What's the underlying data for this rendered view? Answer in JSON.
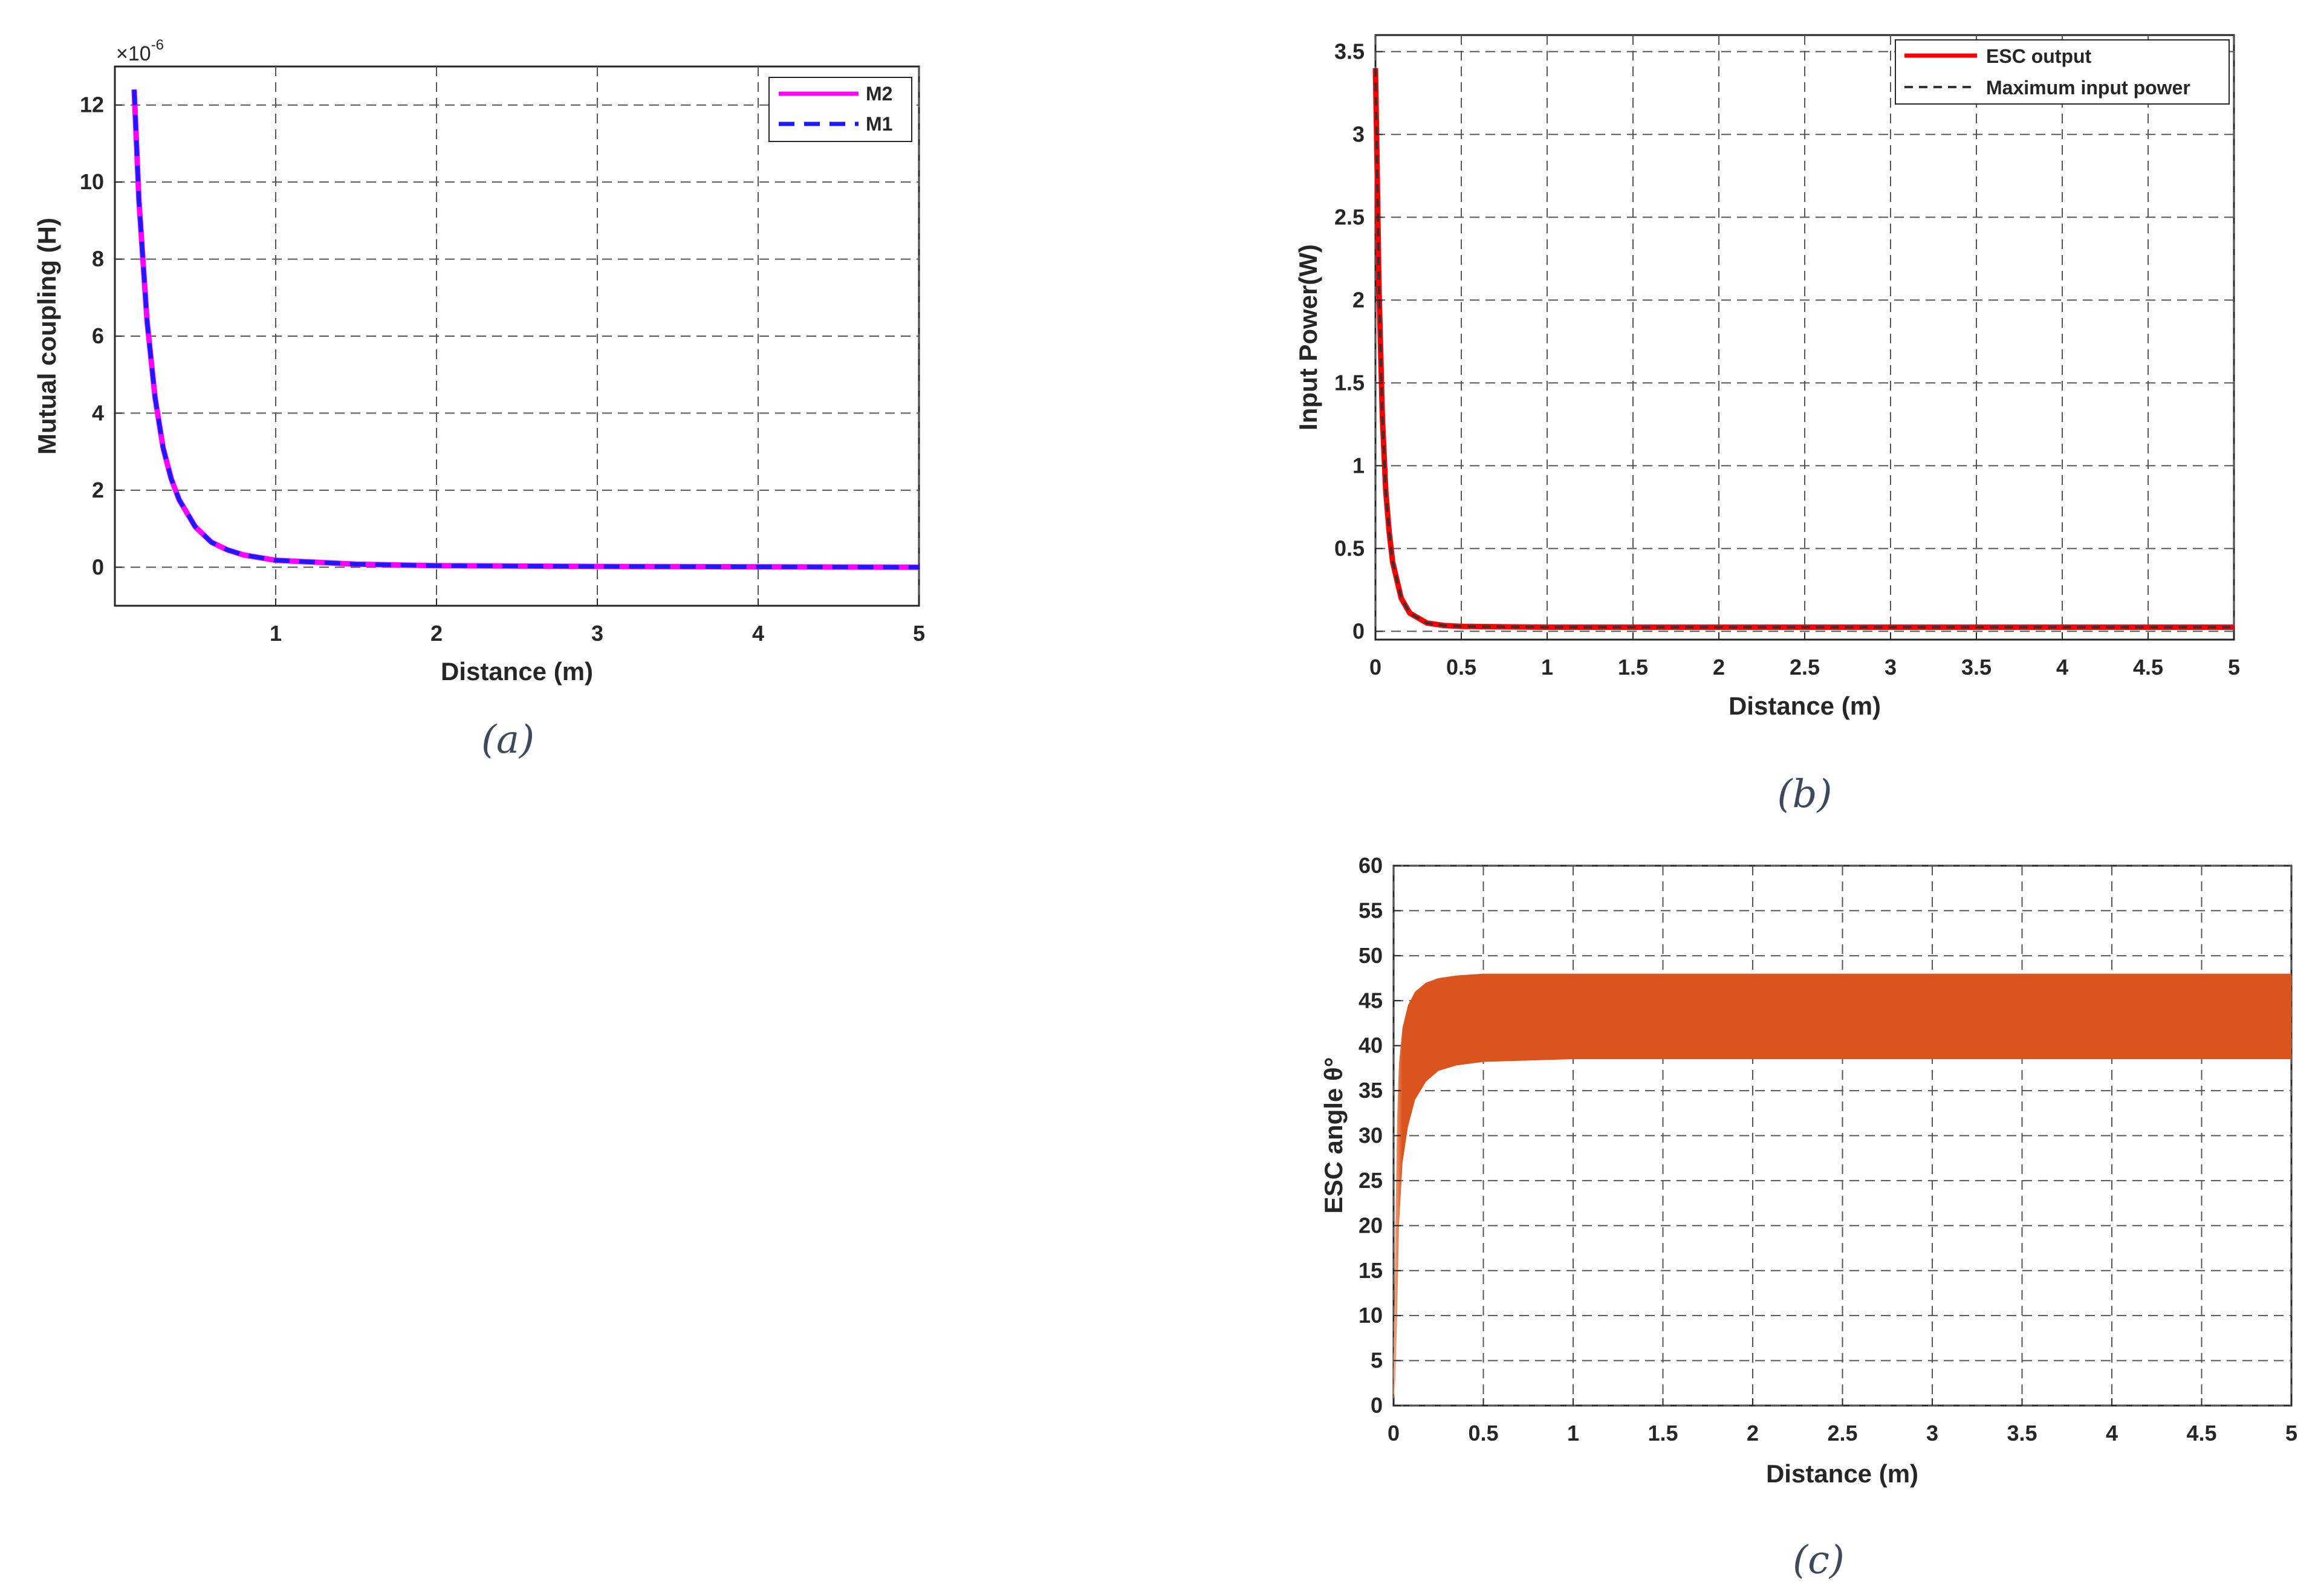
{
  "chart_data": [
    {
      "id": "a",
      "type": "line",
      "caption": "(a)",
      "xlabel": "Distance (m)",
      "ylabel": "Mutual coupling (H)",
      "exponent": "×10",
      "exponent_power": "-6",
      "xlim": [
        0,
        5
      ],
      "ylim": [
        -1,
        13
      ],
      "xticks": [
        "1",
        "2",
        "3",
        "4",
        "5"
      ],
      "yticks": [
        "0",
        "2",
        "4",
        "6",
        "8",
        "10",
        "12"
      ],
      "grid": true,
      "legend_position": "top-right",
      "colors": {
        "M2": "#ff00ff",
        "M1": "#1a1aff"
      },
      "series": [
        {
          "name": "M2",
          "style": "solid",
          "x": [
            0.12,
            0.15,
            0.2,
            0.25,
            0.3,
            0.35,
            0.4,
            0.5,
            0.6,
            0.7,
            0.8,
            1.0,
            1.5,
            2,
            3,
            4,
            5
          ],
          "values": [
            12.4,
            9.5,
            6.4,
            4.4,
            3.1,
            2.3,
            1.75,
            1.05,
            0.65,
            0.45,
            0.32,
            0.18,
            0.08,
            0.04,
            0.02,
            0.01,
            0.0
          ]
        },
        {
          "name": "M1",
          "style": "dashed",
          "x": [
            0.12,
            0.15,
            0.2,
            0.25,
            0.3,
            0.35,
            0.4,
            0.5,
            0.6,
            0.7,
            0.8,
            1.0,
            1.5,
            2,
            3,
            4,
            5
          ],
          "values": [
            12.4,
            9.5,
            6.4,
            4.4,
            3.1,
            2.3,
            1.75,
            1.05,
            0.65,
            0.45,
            0.32,
            0.18,
            0.08,
            0.04,
            0.02,
            0.01,
            0.0
          ]
        }
      ]
    },
    {
      "id": "b",
      "type": "line",
      "caption": "(b)",
      "xlabel": "Distance (m)",
      "ylabel": "Input Power(W)",
      "xlim": [
        0,
        5
      ],
      "ylim": [
        -0.05,
        3.6
      ],
      "xticks": [
        "0",
        "0.5",
        "1",
        "1.5",
        "2",
        "2.5",
        "3",
        "3.5",
        "4",
        "4.5",
        "5"
      ],
      "yticks": [
        "0",
        "0.5",
        "1",
        "1.5",
        "2",
        "2.5",
        "3",
        "3.5"
      ],
      "grid": true,
      "legend_position": "top-right",
      "colors": {
        "ESC output": "#ff0000",
        "Maximum input power": "#333333"
      },
      "series": [
        {
          "name": "ESC output",
          "style": "solid",
          "x": [
            0.0,
            0.01,
            0.02,
            0.04,
            0.06,
            0.08,
            0.1,
            0.15,
            0.2,
            0.3,
            0.4,
            0.5,
            1,
            2,
            3,
            4,
            5
          ],
          "values": [
            3.4,
            2.8,
            2.1,
            1.3,
            0.85,
            0.6,
            0.42,
            0.2,
            0.11,
            0.05,
            0.035,
            0.03,
            0.025,
            0.025,
            0.025,
            0.025,
            0.025
          ]
        },
        {
          "name": "Maximum input power",
          "style": "dashed",
          "x": [
            0.0,
            0.01,
            0.02,
            0.04,
            0.06,
            0.08,
            0.1,
            0.15,
            0.2,
            0.3,
            0.4,
            0.5,
            1,
            2,
            3,
            4,
            5
          ],
          "values": [
            3.4,
            2.8,
            2.1,
            1.3,
            0.85,
            0.6,
            0.42,
            0.2,
            0.11,
            0.05,
            0.035,
            0.03,
            0.025,
            0.025,
            0.025,
            0.025,
            0.025
          ]
        }
      ]
    },
    {
      "id": "c",
      "type": "area",
      "caption": "(c)",
      "xlabel": "Distance (m)",
      "ylabel": "ESC angle θ°",
      "xlim": [
        0,
        5
      ],
      "ylim": [
        0,
        60
      ],
      "xticks": [
        "0",
        "0.5",
        "1",
        "1.5",
        "2",
        "2.5",
        "3",
        "3.5",
        "4",
        "4.5",
        "5"
      ],
      "yticks": [
        "0",
        "5",
        "10",
        "15",
        "20",
        "25",
        "30",
        "35",
        "40",
        "45",
        "50",
        "55",
        "60"
      ],
      "grid": true,
      "colors": {
        "band": "#d9541e",
        "start": "#f4b08a"
      },
      "series": [
        {
          "x": [
            0.0,
            0.01,
            0.02,
            0.03,
            0.05,
            0.08,
            0.12,
            0.18,
            0.25,
            0.35,
            0.5,
            1,
            2,
            3,
            4,
            5
          ],
          "upper": [
            4,
            20,
            32,
            38,
            42,
            44.5,
            46,
            47,
            47.5,
            47.8,
            48,
            48,
            48,
            48,
            48,
            48
          ],
          "lower": [
            0,
            3,
            10,
            20,
            27,
            31,
            34,
            36,
            37.2,
            37.8,
            38.2,
            38.5,
            38.5,
            38.5,
            38.5,
            38.5
          ]
        }
      ]
    }
  ]
}
